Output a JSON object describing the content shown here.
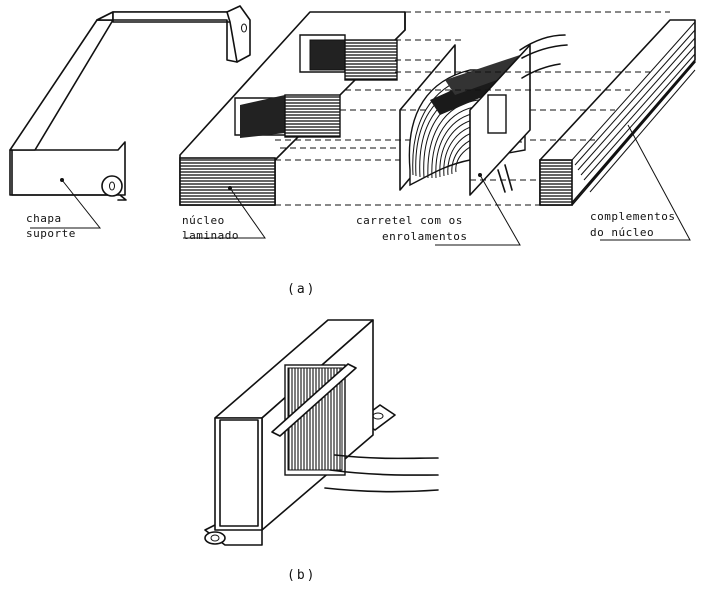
{
  "figure_a": {
    "caption": "(a)",
    "labels": {
      "chapa_line1": "chapa",
      "chapa_line2": "suporte",
      "nucleo_line1": "núcleo",
      "nucleo_line2": "laminado",
      "carretel_line1": "carretel com os",
      "carretel_line2": "enrolamentos",
      "complementos_line1": "complementos",
      "complementos_line2": "do núcleo"
    }
  },
  "figure_b": {
    "caption": "(b)"
  }
}
